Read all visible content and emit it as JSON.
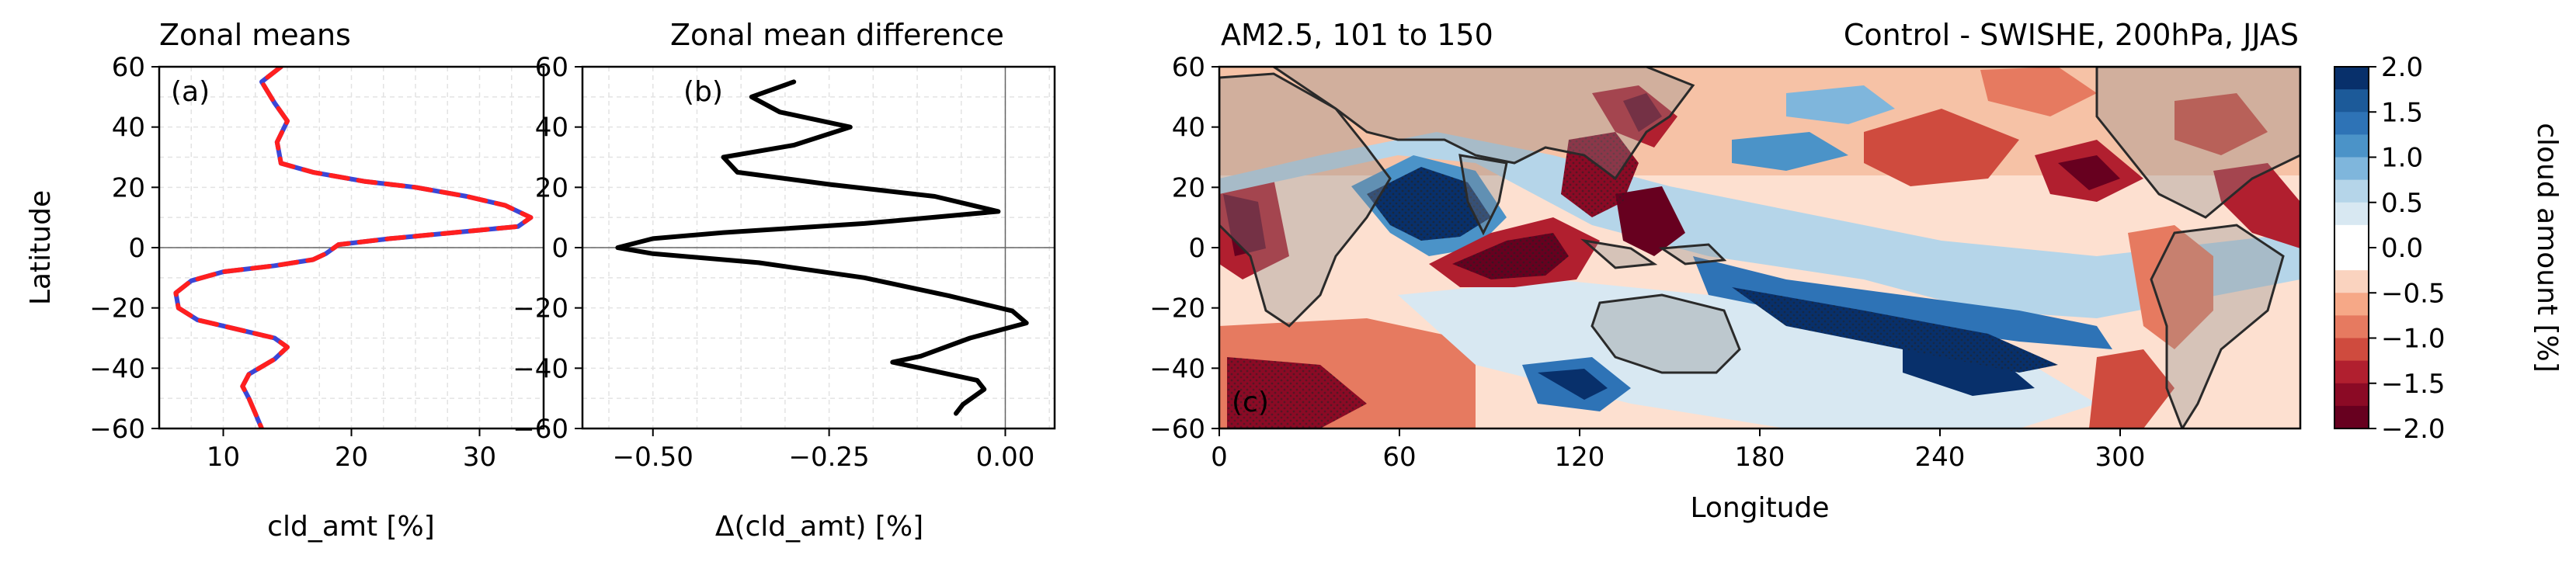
{
  "chart_data": [
    {
      "id": "a",
      "type": "line",
      "title": "Zonal means",
      "panel_label": "(a)",
      "xlabel": "cld_amt [%]",
      "ylabel": "Latitude",
      "xlim": [
        5,
        35
      ],
      "ylim": [
        -60,
        60
      ],
      "xticks": [
        10,
        20,
        30
      ],
      "yticks": [
        -60,
        -40,
        -20,
        0,
        20,
        40,
        60
      ],
      "grid": true,
      "series": [
        {
          "color": "#3b46d6",
          "style": "solid",
          "points": [
            [
              14.5,
              60
            ],
            [
              13,
              55
            ],
            [
              14,
              48
            ],
            [
              15,
              42
            ],
            [
              14.2,
              35
            ],
            [
              14.5,
              28
            ],
            [
              17,
              25
            ],
            [
              21,
              22
            ],
            [
              25,
              20
            ],
            [
              29,
              17
            ],
            [
              32,
              14
            ],
            [
              34,
              10
            ],
            [
              33,
              7
            ],
            [
              28,
              5
            ],
            [
              23,
              3
            ],
            [
              19,
              1
            ],
            [
              18,
              -2
            ],
            [
              17,
              -4
            ],
            [
              14,
              -6
            ],
            [
              10,
              -8
            ],
            [
              7.5,
              -11
            ],
            [
              6.3,
              -15
            ],
            [
              6.5,
              -20
            ],
            [
              8,
              -24
            ],
            [
              11,
              -27
            ],
            [
              14,
              -30
            ],
            [
              15,
              -33
            ],
            [
              14,
              -37
            ],
            [
              12,
              -42
            ],
            [
              11.5,
              -46
            ],
            [
              12,
              -50
            ],
            [
              12.5,
              -55
            ],
            [
              13,
              -60
            ]
          ]
        },
        {
          "color": "#ff1f1f",
          "style": "dashed",
          "points": [
            [
              14.5,
              60
            ],
            [
              13,
              55
            ],
            [
              14,
              48
            ],
            [
              15,
              42
            ],
            [
              14.2,
              35
            ],
            [
              14.5,
              28
            ],
            [
              17,
              25
            ],
            [
              21,
              22
            ],
            [
              25,
              20
            ],
            [
              29,
              17
            ],
            [
              32,
              14
            ],
            [
              34,
              10
            ],
            [
              33,
              7
            ],
            [
              28,
              5
            ],
            [
              23,
              3
            ],
            [
              19,
              1
            ],
            [
              18,
              -2
            ],
            [
              17,
              -4
            ],
            [
              14,
              -6
            ],
            [
              10,
              -8
            ],
            [
              7.5,
              -11
            ],
            [
              6.3,
              -15
            ],
            [
              6.5,
              -20
            ],
            [
              8,
              -24
            ],
            [
              11,
              -27
            ],
            [
              14,
              -30
            ],
            [
              15,
              -33
            ],
            [
              14,
              -37
            ],
            [
              12,
              -42
            ],
            [
              11.5,
              -46
            ],
            [
              12,
              -50
            ],
            [
              12.5,
              -55
            ],
            [
              13,
              -60
            ]
          ]
        }
      ]
    },
    {
      "id": "b",
      "type": "line",
      "title": "Zonal mean difference",
      "panel_label": "(b)",
      "xlabel": "Δ(cld_amt) [%]",
      "ylabel": "",
      "xlim": [
        -0.6,
        0.07
      ],
      "ylim": [
        -60,
        60
      ],
      "xticks": [
        -0.5,
        -0.25,
        0.0
      ],
      "xtick_labels": [
        "−0.50",
        "−0.25",
        "0.00"
      ],
      "yticks": [
        -60,
        -40,
        -20,
        0,
        20,
        40,
        60
      ],
      "grid": true,
      "series": [
        {
          "color": "#000000",
          "style": "solid",
          "points": [
            [
              -0.3,
              55
            ],
            [
              -0.36,
              50
            ],
            [
              -0.32,
              45
            ],
            [
              -0.22,
              40
            ],
            [
              -0.3,
              34
            ],
            [
              -0.4,
              30
            ],
            [
              -0.38,
              25
            ],
            [
              -0.25,
              21
            ],
            [
              -0.1,
              17
            ],
            [
              -0.01,
              12
            ],
            [
              -0.2,
              8
            ],
            [
              -0.4,
              5
            ],
            [
              -0.5,
              3
            ],
            [
              -0.55,
              0
            ],
            [
              -0.5,
              -2
            ],
            [
              -0.35,
              -5
            ],
            [
              -0.2,
              -10
            ],
            [
              -0.08,
              -16
            ],
            [
              0.01,
              -21
            ],
            [
              0.03,
              -25
            ],
            [
              -0.05,
              -30
            ],
            [
              -0.12,
              -36
            ],
            [
              -0.16,
              -38
            ],
            [
              -0.1,
              -41
            ],
            [
              -0.04,
              -44
            ],
            [
              -0.03,
              -47
            ],
            [
              -0.06,
              -52
            ],
            [
              -0.07,
              -55
            ]
          ]
        }
      ]
    },
    {
      "id": "c",
      "type": "heatmap",
      "title": "AM2.5, 101 to 150",
      "subtitle": "Control - SWISHE, 200hPa, JJAS",
      "panel_label": "(c)",
      "xlabel": "Longitude",
      "ylabel": "",
      "xlim": [
        0,
        360
      ],
      "ylim": [
        -60,
        60
      ],
      "xticks": [
        0,
        60,
        120,
        180,
        240,
        300
      ],
      "yticks": [
        -60,
        -40,
        -20,
        0,
        20,
        40,
        60
      ],
      "colorbar": {
        "label": "cloud amount [%]",
        "ticks": [
          2.0,
          1.5,
          1.0,
          0.5,
          0.0,
          -0.5,
          -1.0,
          -1.5,
          -2.0
        ],
        "tick_labels": [
          "2.0",
          "1.5",
          "1.0",
          "0.5",
          "0.0",
          "−0.5",
          "−1.0",
          "−1.5",
          "−2.0"
        ],
        "colors": [
          "#08306b",
          "#1c5a99",
          "#2e73b6",
          "#4b93c8",
          "#7fb6dc",
          "#b5d5e9",
          "#d8e8f2",
          "#ffffff",
          "#ffffff",
          "#fad3bf",
          "#f6a887",
          "#e67a60",
          "#cf4b3e",
          "#b11f2f",
          "#8b0a25",
          "#67001f"
        ]
      }
    }
  ]
}
